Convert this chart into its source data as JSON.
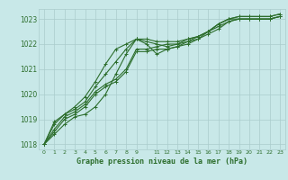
{
  "title": "Graphe pression niveau de la mer (hPa)",
  "background_color": "#c8e8e8",
  "grid_color": "#aacccc",
  "line_color": "#2d6e2d",
  "series": [
    [
      1018.0,
      1018.4,
      1018.8,
      1019.1,
      1019.2,
      1019.5,
      1020.0,
      1020.8,
      1021.6,
      1022.2,
      1022.2,
      1022.1,
      1022.1,
      1022.1,
      1022.2,
      1022.3,
      1022.5,
      1022.8,
      1023.0,
      1023.0,
      1023.0,
      1023.0,
      1023.0,
      1023.1
    ],
    [
      1018.0,
      1018.5,
      1019.0,
      1019.2,
      1019.5,
      1020.0,
      1020.3,
      1020.5,
      1020.9,
      1021.7,
      1021.7,
      1021.8,
      1021.8,
      1021.9,
      1022.1,
      1022.2,
      1022.4,
      1022.6,
      1022.9,
      1023.0,
      1023.0,
      1023.0,
      1023.0,
      1023.1
    ],
    [
      1018.0,
      1018.6,
      1019.1,
      1019.3,
      1019.6,
      1020.1,
      1020.4,
      1020.6,
      1021.0,
      1021.8,
      1021.8,
      1021.9,
      1022.0,
      1022.0,
      1022.2,
      1022.3,
      1022.5,
      1022.7,
      1022.9,
      1023.0,
      1023.0,
      1023.0,
      1023.0,
      1023.1
    ],
    [
      1018.0,
      1018.8,
      1019.2,
      1019.4,
      1019.7,
      1020.3,
      1020.8,
      1021.3,
      1021.8,
      1022.2,
      1022.1,
      1022.0,
      1021.9,
      1022.0,
      1022.1,
      1022.3,
      1022.5,
      1022.8,
      1023.0,
      1023.1,
      1023.1,
      1023.1,
      1023.1,
      1023.2
    ],
    [
      1018.0,
      1018.9,
      1019.2,
      1019.5,
      1019.9,
      1020.5,
      1021.2,
      1021.8,
      1022.0,
      1022.2,
      1022.0,
      1021.6,
      1021.8,
      1021.9,
      1022.0,
      1022.2,
      1022.5,
      1022.8,
      1023.0,
      1023.1,
      1023.1,
      1023.1,
      1023.1,
      1023.2
    ]
  ],
  "x_labels": [
    "0",
    "1",
    "2",
    "3",
    "4",
    "5",
    "6",
    "7",
    "8",
    "9",
    "",
    "11",
    "12",
    "13",
    "14",
    "15",
    "16",
    "17",
    "18",
    "19",
    "20",
    "21",
    "22",
    "23"
  ],
  "ylim": [
    1017.8,
    1023.4
  ],
  "yticks": [
    1018,
    1019,
    1020,
    1021,
    1022,
    1023
  ],
  "marker_size": 2.5,
  "line_width": 0.8,
  "figsize": [
    3.2,
    2.0
  ],
  "dpi": 100
}
